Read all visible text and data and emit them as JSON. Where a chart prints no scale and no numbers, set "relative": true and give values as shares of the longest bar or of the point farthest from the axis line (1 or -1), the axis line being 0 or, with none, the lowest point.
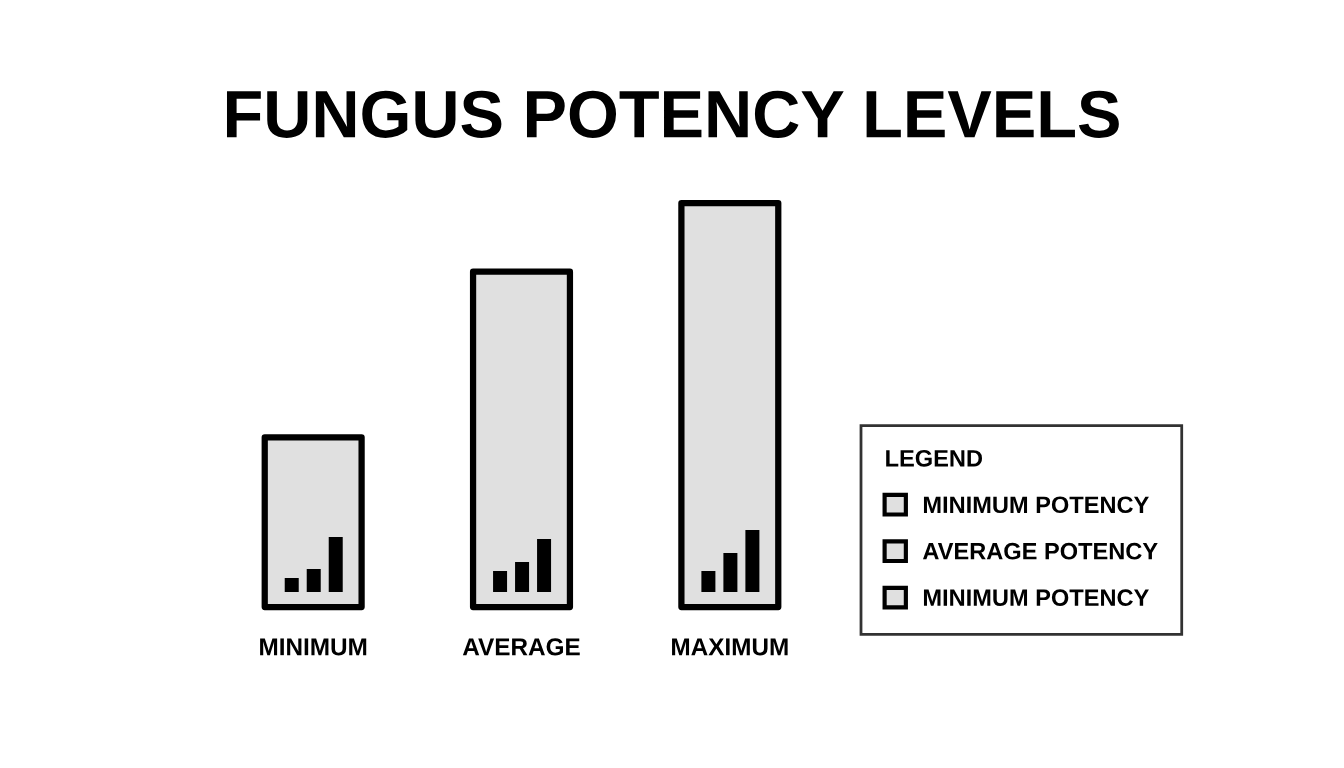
{
  "chart_data": {
    "type": "bar",
    "title": "FUNGUS POTENCY LEVELS",
    "relative": true,
    "categories": [
      "MINIMUM",
      "AVERAGE",
      "MAXIMUM"
    ],
    "series": [
      {
        "name": "MINIMUM POTENCY",
        "color": "#e0e0e0",
        "values": [
          0.42,
          null,
          null
        ]
      },
      {
        "name": "AVERAGE POTENCY",
        "color": "#e0e0e0",
        "values": [
          null,
          0.83,
          null
        ]
      },
      {
        "name": "MINIMUM POTENCY",
        "color": "#e0e0e0",
        "values": [
          null,
          null,
          1
        ]
      }
    ],
    "legend": "right",
    "legend_title": "LEGEND",
    "grid": false
  }
}
